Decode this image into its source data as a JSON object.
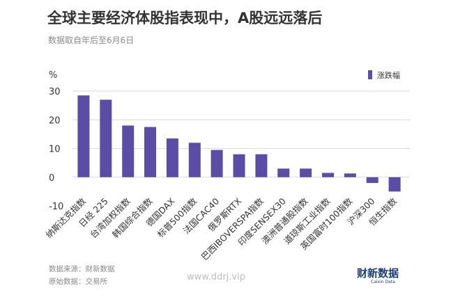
{
  "header": {
    "title": "全球主要经济体股指表现中，A股远远落后",
    "subtitle": "数据取自年后至6月6日"
  },
  "footer": {
    "source": "数据来源：财新数据",
    "origin": "原始数据：交易所",
    "watermark": "www.ddrj.vip",
    "brand": "财新数据",
    "brand_sub": "Caixin Data"
  },
  "colors": {
    "bar": "#5b4ca8",
    "text": "#333333",
    "muted": "#8a8a8a",
    "grid": "#d9d9d9"
  },
  "chart_data": {
    "type": "bar",
    "unit_label": "%",
    "categories": [
      "纳斯达克指数",
      "日经 225",
      "台湾加权指数",
      "韩国综合指数",
      "德国DAX",
      "标普500指数",
      "法国CAC40",
      "俄罗斯RTX",
      "巴西IBOVERSPA指数",
      "印度SENSEX30",
      "澳洲普通股指数",
      "道琼斯工业指数",
      "英国富时100指数",
      "沪深300",
      "恒生指数"
    ],
    "series": [
      {
        "name": "涨跌幅",
        "values": [
          28.5,
          27.0,
          18.0,
          17.5,
          13.5,
          12.0,
          9.5,
          8.0,
          8.0,
          3.0,
          3.0,
          1.5,
          1.3,
          -2.0,
          -5.0
        ]
      }
    ],
    "yticks": [
      30,
      20,
      10,
      0,
      -10
    ],
    "ylim": [
      -10,
      30
    ],
    "grid": true,
    "legend": "top-right"
  }
}
